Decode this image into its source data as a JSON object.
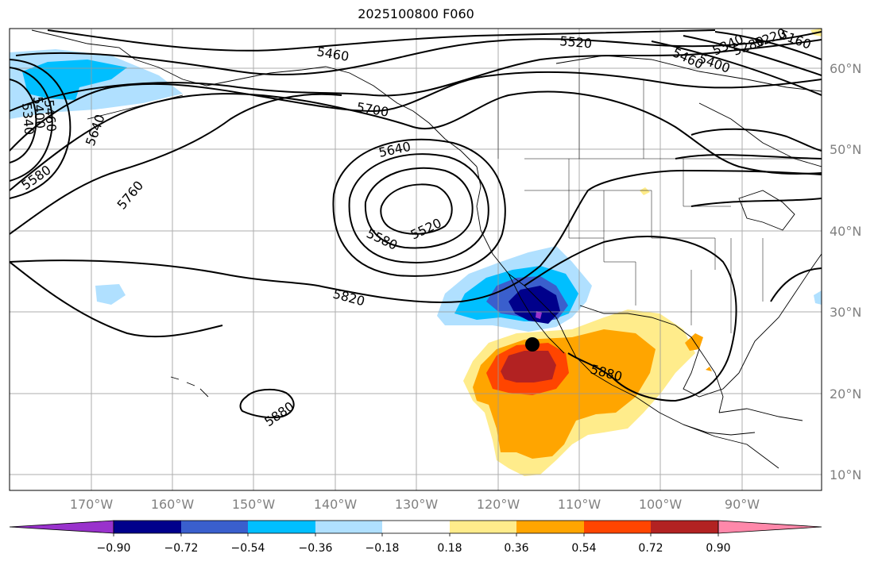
{
  "title": "2025100800 F060",
  "lat_labels": [
    "60°N",
    "50°N",
    "40°N",
    "30°N",
    "20°N",
    "10°N"
  ],
  "lon_labels": [
    "170°W",
    "160°W",
    "150°W",
    "140°W",
    "130°W",
    "120°W",
    "110°W",
    "100°W",
    "90°W"
  ],
  "contour_labels": [
    "5460",
    "5520",
    "5700",
    "5640",
    "5580",
    "5520",
    "5820",
    "5760",
    "5640",
    "5580",
    "5460",
    "5400",
    "5340",
    "5880",
    "5880",
    "5160",
    "5220",
    "5280",
    "5340",
    "5400",
    "5460"
  ],
  "colorbar": {
    "labels": [
      "−0.90",
      "−0.72",
      "−0.54",
      "−0.36",
      "−0.18",
      "0.18",
      "0.36",
      "0.54",
      "0.72",
      "0.90"
    ],
    "colors": [
      "#9932cc",
      "#00008b",
      "#3a5fcd",
      "#00bfff",
      "#b0e0ff",
      "#ffffff",
      "#ffec8b",
      "#ffa500",
      "#ff4500",
      "#b22222",
      "#ff88aa"
    ]
  },
  "marker": "black-dot-storm-center"
}
